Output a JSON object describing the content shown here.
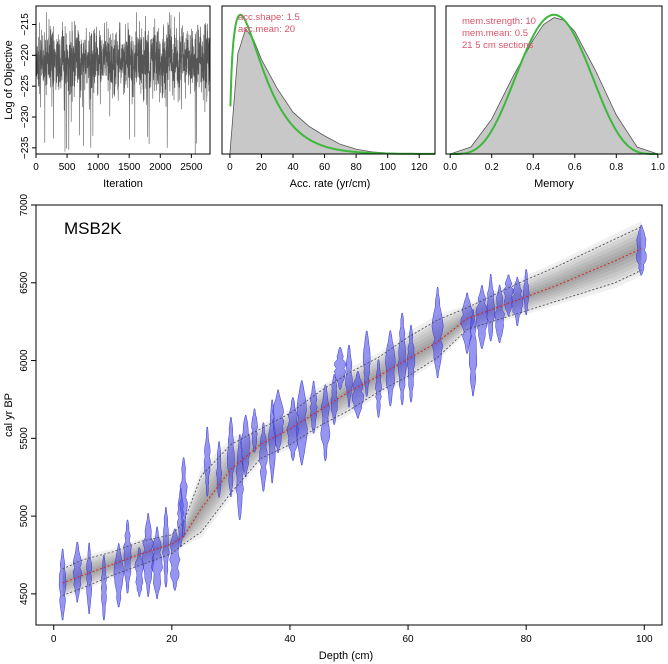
{
  "chart_data": [
    {
      "type": "line",
      "panel": "iterations",
      "xlabel": "Iteration",
      "ylabel": "Log of Objective",
      "xlim": [
        0,
        2800
      ],
      "ylim": [
        -236,
        -212
      ],
      "xticks": [
        0,
        500,
        1000,
        1500,
        2000,
        2500
      ],
      "yticks": [
        -215,
        -220,
        -225,
        -230,
        -235
      ],
      "trace": {
        "n": 2800,
        "typical_range": [
          -228,
          -214
        ],
        "extreme_min": -236,
        "color": "#555555"
      }
    },
    {
      "type": "area",
      "panel": "accumulation",
      "xlabel": "Acc. rate (yr/cm)",
      "xlim": [
        -5,
        130
      ],
      "xticks": [
        0,
        20,
        40,
        60,
        80,
        100,
        120
      ],
      "prior_color": "#3cb83c",
      "posterior_color": "#c8c8c8",
      "annotations": [
        "acc.shape:  1.5",
        "acc.mean:  20"
      ],
      "prior_gamma": {
        "shape": 1.5,
        "mean": 20
      },
      "posterior": {
        "x": [
          0,
          5,
          10,
          15,
          20,
          30,
          40,
          50,
          60,
          70,
          80,
          90,
          100,
          110,
          120
        ],
        "density": [
          0,
          0.72,
          0.9,
          0.82,
          0.68,
          0.47,
          0.3,
          0.2,
          0.13,
          0.07,
          0.035,
          0.015,
          0.007,
          0.003,
          0.0
        ]
      }
    },
    {
      "type": "area",
      "panel": "memory",
      "xlabel": "Memory",
      "xlim": [
        -0.02,
        1.02
      ],
      "xticks": [
        0.0,
        0.2,
        0.4,
        0.6,
        0.8,
        1.0
      ],
      "prior_color": "#3cb83c",
      "posterior_color": "#c8c8c8",
      "annotations": [
        "mem.strength: 10",
        "mem.mean: 0.5",
        "21 5 cm sections"
      ],
      "prior_beta": {
        "strength": 10,
        "mean": 0.5
      },
      "posterior": {
        "x": [
          0.0,
          0.1,
          0.2,
          0.3,
          0.4,
          0.45,
          0.5,
          0.55,
          0.6,
          0.7,
          0.8,
          0.9,
          1.0
        ],
        "density": [
          0,
          0.05,
          0.25,
          0.55,
          0.82,
          0.93,
          0.98,
          0.96,
          0.88,
          0.6,
          0.28,
          0.05,
          0
        ]
      }
    },
    {
      "type": "scatter",
      "panel": "age-depth",
      "title": "MSB2K",
      "xlabel": "Depth (cm)",
      "ylabel": "cal yr BP",
      "xlim": [
        -3,
        103
      ],
      "ylim": [
        4300,
        7000
      ],
      "xticks": [
        0,
        20,
        40,
        60,
        80,
        100
      ],
      "yticks": [
        4500,
        5000,
        5500,
        6000,
        6500,
        7000
      ],
      "model_median": {
        "depth": [
          1.5,
          5,
          10,
          15,
          20,
          22,
          25,
          30,
          35,
          40,
          45,
          50,
          55,
          60,
          65,
          70,
          75,
          80,
          85,
          90,
          95,
          99.5
        ],
        "age": [
          4570,
          4620,
          4690,
          4760,
          4820,
          4870,
          5050,
          5300,
          5460,
          5560,
          5680,
          5800,
          5900,
          6010,
          6120,
          6270,
          6340,
          6410,
          6480,
          6560,
          6640,
          6720
        ]
      },
      "model_range_lower": [
        4490,
        4540,
        4620,
        4690,
        4760,
        4820,
        4900,
        5150,
        5370,
        5460,
        5580,
        5680,
        5800,
        5900,
        6020,
        6200,
        6260,
        6320,
        6380,
        6440,
        6500,
        6580
      ],
      "model_range_upper": [
        4660,
        4720,
        4770,
        4840,
        4880,
        4960,
        5260,
        5460,
        5560,
        5660,
        5800,
        5920,
        6020,
        6150,
        6260,
        6340,
        6430,
        6520,
        6600,
        6690,
        6780,
        6860
      ],
      "dates": [
        {
          "depth": 1.5,
          "age": 4560
        },
        {
          "depth": 4,
          "age": 4640
        },
        {
          "depth": 6,
          "age": 4600
        },
        {
          "depth": 8.5,
          "age": 4540
        },
        {
          "depth": 11,
          "age": 4620
        },
        {
          "depth": 12.5,
          "age": 4740
        },
        {
          "depth": 14.5,
          "age": 4640
        },
        {
          "depth": 16,
          "age": 4750
        },
        {
          "depth": 17.5,
          "age": 4700
        },
        {
          "depth": 19,
          "age": 4800
        },
        {
          "depth": 20.5,
          "age": 4720
        },
        {
          "depth": 21.5,
          "age": 4990
        },
        {
          "depth": 22,
          "age": 5120
        },
        {
          "depth": 26,
          "age": 5350
        },
        {
          "depth": 28,
          "age": 5300
        },
        {
          "depth": 30,
          "age": 5380
        },
        {
          "depth": 31.5,
          "age": 5250
        },
        {
          "depth": 32.5,
          "age": 5450
        },
        {
          "depth": 34,
          "age": 5550
        },
        {
          "depth": 35.5,
          "age": 5380
        },
        {
          "depth": 37,
          "age": 5480
        },
        {
          "depth": 38,
          "age": 5610
        },
        {
          "depth": 40.5,
          "age": 5560
        },
        {
          "depth": 42,
          "age": 5600
        },
        {
          "depth": 44,
          "age": 5700
        },
        {
          "depth": 46,
          "age": 5600
        },
        {
          "depth": 47.5,
          "age": 5750
        },
        {
          "depth": 48.5,
          "age": 5950
        },
        {
          "depth": 50,
          "age": 5900
        },
        {
          "depth": 51.5,
          "age": 5780
        },
        {
          "depth": 53,
          "age": 5980
        },
        {
          "depth": 55,
          "age": 5820
        },
        {
          "depth": 57,
          "age": 5950
        },
        {
          "depth": 59,
          "age": 6010
        },
        {
          "depth": 60.5,
          "age": 5980
        },
        {
          "depth": 65,
          "age": 6180
        },
        {
          "depth": 70,
          "age": 6240
        },
        {
          "depth": 71,
          "age": 6050
        },
        {
          "depth": 72.5,
          "age": 6280
        },
        {
          "depth": 74,
          "age": 6340
        },
        {
          "depth": 75.5,
          "age": 6300
        },
        {
          "depth": 77,
          "age": 6420
        },
        {
          "depth": 78.5,
          "age": 6380
        },
        {
          "depth": 80,
          "age": 6440
        },
        {
          "depth": 99.5,
          "age": 6710
        }
      ],
      "date_color": "#5050e8",
      "median_color": "#e02020"
    }
  ]
}
